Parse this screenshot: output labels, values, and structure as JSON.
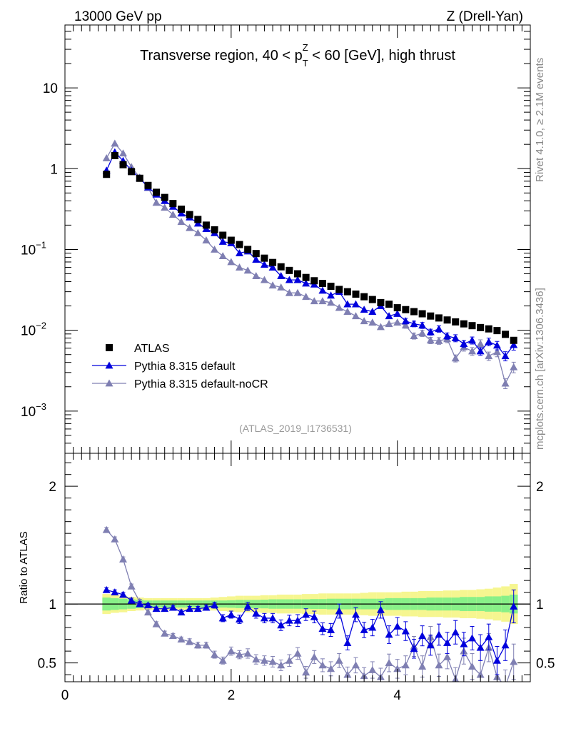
{
  "header": {
    "left": "13000 GeV pp",
    "right": "Z (Drell-Yan)"
  },
  "side_labels": {
    "rivet": "Rivet 4.1.0, ≥ 2.1M events",
    "mcplots": "mcplots.cern.ch [arXiv:1306.3436]"
  },
  "colors": {
    "atlas": "#000000",
    "default": "#0000dd",
    "nocr": "#7f7fb2",
    "band_inner": "#88f088",
    "band_outer": "#f6f690",
    "watermark": "#999999"
  },
  "chart_data": [
    {
      "type": "scatter",
      "title_parts": {
        "prefix": "Transverse region, 40 < p",
        "sup": "Z",
        "sub": "T",
        "suffix": " < 60 [GeV], high thrust"
      },
      "yscale": "log",
      "ylim": [
        0.0003,
        60
      ],
      "xlim": [
        0,
        5.6
      ],
      "y_ticks": [
        {
          "value": 10,
          "label": "10",
          "exp": ""
        },
        {
          "value": 1,
          "label": "1",
          "exp": ""
        },
        {
          "value": 0.1,
          "label": "10",
          "exp": "−1"
        },
        {
          "value": 0.01,
          "label": "10",
          "exp": "−2"
        },
        {
          "value": 0.001,
          "label": "10",
          "exp": "−3"
        }
      ],
      "watermark": "(ATLAS_2019_I1736531)",
      "legend": {
        "position": "lower-left",
        "entries": [
          {
            "key": "atlas",
            "label": "ATLAS",
            "marker": "square"
          },
          {
            "key": "default",
            "label": "Pythia 8.315 default",
            "marker": "triangle"
          },
          {
            "key": "nocr",
            "label": "Pythia 8.315 default-noCR",
            "marker": "triangle"
          }
        ]
      },
      "x": [
        0.5,
        0.6,
        0.7,
        0.8,
        0.9,
        1.0,
        1.1,
        1.2,
        1.3,
        1.4,
        1.5,
        1.6,
        1.7,
        1.8,
        1.9,
        2.0,
        2.1,
        2.2,
        2.3,
        2.4,
        2.5,
        2.6,
        2.7,
        2.8,
        2.9,
        3.0,
        3.1,
        3.2,
        3.3,
        3.4,
        3.5,
        3.6,
        3.7,
        3.8,
        3.9,
        4.0,
        4.1,
        4.2,
        4.3,
        4.4,
        4.5,
        4.6,
        4.7,
        4.8,
        4.9,
        5.0,
        5.1,
        5.2,
        5.3,
        5.4
      ],
      "series": [
        {
          "name": "ATLAS",
          "key": "atlas",
          "values": [
            0.85,
            1.45,
            1.12,
            0.92,
            0.76,
            0.62,
            0.51,
            0.44,
            0.37,
            0.315,
            0.27,
            0.235,
            0.2,
            0.175,
            0.15,
            0.13,
            0.115,
            0.1,
            0.089,
            0.078,
            0.069,
            0.061,
            0.055,
            0.05,
            0.045,
            0.041,
            0.038,
            0.035,
            0.032,
            0.03,
            0.028,
            0.026,
            0.024,
            0.022,
            0.021,
            0.019,
            0.018,
            0.017,
            0.016,
            0.015,
            0.0142,
            0.0134,
            0.0127,
            0.012,
            0.0114,
            0.0108,
            0.0104,
            0.0099,
            0.0089,
            0.0075
          ]
        },
        {
          "name": "Pythia 8.315 default",
          "key": "default",
          "values": [
            0.95,
            1.6,
            1.25,
            0.95,
            0.76,
            0.59,
            0.48,
            0.4,
            0.34,
            0.28,
            0.25,
            0.21,
            0.18,
            0.16,
            0.125,
            0.12,
            0.09,
            0.095,
            0.075,
            0.065,
            0.06,
            0.047,
            0.042,
            0.042,
            0.038,
            0.037,
            0.031,
            0.027,
            0.03,
            0.021,
            0.021,
            0.018,
            0.017,
            0.02,
            0.015,
            0.016,
            0.013,
            0.012,
            0.0115,
            0.0095,
            0.0104,
            0.0085,
            0.008,
            0.0068,
            0.0075,
            0.0055,
            0.0072,
            0.0065,
            0.0048,
            0.0066
          ]
        },
        {
          "name": "Pythia 8.315 default-noCR",
          "key": "nocr",
          "values": [
            1.35,
            2.05,
            1.55,
            1.05,
            0.78,
            0.58,
            0.38,
            0.33,
            0.27,
            0.22,
            0.185,
            0.16,
            0.13,
            0.1,
            0.083,
            0.07,
            0.06,
            0.055,
            0.047,
            0.042,
            0.036,
            0.034,
            0.029,
            0.029,
            0.026,
            0.023,
            0.023,
            0.022,
            0.019,
            0.017,
            0.015,
            0.013,
            0.0125,
            0.011,
            0.012,
            0.0125,
            0.0115,
            0.0085,
            0.0092,
            0.0075,
            0.0074,
            0.0078,
            0.0045,
            0.0062,
            0.0055,
            0.0068,
            0.0048,
            0.0054,
            0.0022,
            0.0035
          ]
        }
      ]
    },
    {
      "type": "scatter",
      "ylabel": "Ratio to ATLAS",
      "ylim": [
        0.34,
        2.28
      ],
      "xlim": [
        0,
        5.6
      ],
      "y_ticks": [
        0.5,
        1,
        2
      ],
      "x_ticks": [
        0,
        2,
        4
      ],
      "reference_line": 1,
      "band": {
        "inner_half_width": [
          0.055,
          0.05,
          0.045,
          0.04,
          0.035,
          0.03,
          0.03,
          0.03,
          0.03,
          0.03,
          0.03,
          0.03,
          0.03,
          0.03,
          0.03,
          0.032,
          0.035,
          0.035,
          0.035,
          0.037,
          0.04,
          0.04,
          0.04,
          0.04,
          0.04,
          0.042,
          0.042,
          0.045,
          0.045,
          0.045,
          0.045,
          0.045,
          0.045,
          0.045,
          0.05,
          0.05,
          0.05,
          0.05,
          0.05,
          0.055,
          0.055,
          0.055,
          0.055,
          0.06,
          0.06,
          0.06,
          0.065,
          0.065,
          0.07,
          0.08
        ],
        "outer_half_width": [
          0.085,
          0.075,
          0.07,
          0.06,
          0.055,
          0.05,
          0.05,
          0.05,
          0.05,
          0.05,
          0.05,
          0.05,
          0.05,
          0.055,
          0.06,
          0.065,
          0.07,
          0.07,
          0.07,
          0.075,
          0.075,
          0.08,
          0.08,
          0.08,
          0.085,
          0.085,
          0.09,
          0.09,
          0.09,
          0.09,
          0.09,
          0.095,
          0.1,
          0.1,
          0.1,
          0.1,
          0.105,
          0.105,
          0.11,
          0.11,
          0.11,
          0.115,
          0.115,
          0.12,
          0.12,
          0.125,
          0.13,
          0.14,
          0.15,
          0.17
        ]
      },
      "series": [
        {
          "name": "Pythia 8.315 default",
          "key": "default",
          "values": [
            1.12,
            1.1,
            1.08,
            1.03,
            1.0,
            0.99,
            0.96,
            0.96,
            0.97,
            0.93,
            0.96,
            0.96,
            0.97,
            0.99,
            0.88,
            0.91,
            0.87,
            0.98,
            0.92,
            0.88,
            0.88,
            0.82,
            0.86,
            0.86,
            0.91,
            0.89,
            0.79,
            0.78,
            0.94,
            0.67,
            0.91,
            0.78,
            0.8,
            0.95,
            0.74,
            0.81,
            0.77,
            0.62,
            0.73,
            0.65,
            0.74,
            0.67,
            0.76,
            0.66,
            0.71,
            0.63,
            0.72,
            0.52,
            0.65,
            0.98
          ]
        },
        {
          "name": "Pythia 8.315 default-noCR",
          "key": "nocr",
          "values": [
            1.63,
            1.55,
            1.38,
            1.15,
            1.02,
            0.93,
            0.83,
            0.75,
            0.73,
            0.7,
            0.68,
            0.65,
            0.65,
            0.57,
            0.52,
            0.6,
            0.57,
            0.58,
            0.53,
            0.52,
            0.51,
            0.48,
            0.52,
            0.58,
            0.42,
            0.55,
            0.48,
            0.45,
            0.52,
            0.4,
            0.48,
            0.39,
            0.44,
            0.38,
            0.5,
            0.45,
            0.48,
            0.64,
            0.47,
            0.72,
            0.48,
            0.55,
            0.36,
            0.6,
            0.47,
            0.4,
            0.63,
            0.38,
            0.3,
            0.51
          ]
        }
      ],
      "errors": {
        "default": [
          0.02,
          0.02,
          0.02,
          0.02,
          0.02,
          0.015,
          0.015,
          0.015,
          0.015,
          0.02,
          0.02,
          0.02,
          0.02,
          0.025,
          0.03,
          0.03,
          0.035,
          0.035,
          0.04,
          0.04,
          0.04,
          0.045,
          0.045,
          0.05,
          0.05,
          0.05,
          0.05,
          0.055,
          0.06,
          0.06,
          0.06,
          0.065,
          0.07,
          0.07,
          0.075,
          0.075,
          0.08,
          0.08,
          0.085,
          0.085,
          0.09,
          0.09,
          0.1,
          0.1,
          0.1,
          0.11,
          0.11,
          0.12,
          0.13,
          0.14
        ],
        "nocr": [
          0.02,
          0.02,
          0.02,
          0.02,
          0.02,
          0.02,
          0.02,
          0.02,
          0.02,
          0.02,
          0.025,
          0.025,
          0.025,
          0.03,
          0.03,
          0.035,
          0.035,
          0.04,
          0.04,
          0.04,
          0.045,
          0.045,
          0.05,
          0.05,
          0.05,
          0.055,
          0.055,
          0.06,
          0.06,
          0.065,
          0.065,
          0.07,
          0.07,
          0.075,
          0.075,
          0.08,
          0.08,
          0.085,
          0.09,
          0.09,
          0.095,
          0.1,
          0.1,
          0.11,
          0.11,
          0.12,
          0.12,
          0.13,
          0.14,
          0.15
        ]
      }
    }
  ]
}
